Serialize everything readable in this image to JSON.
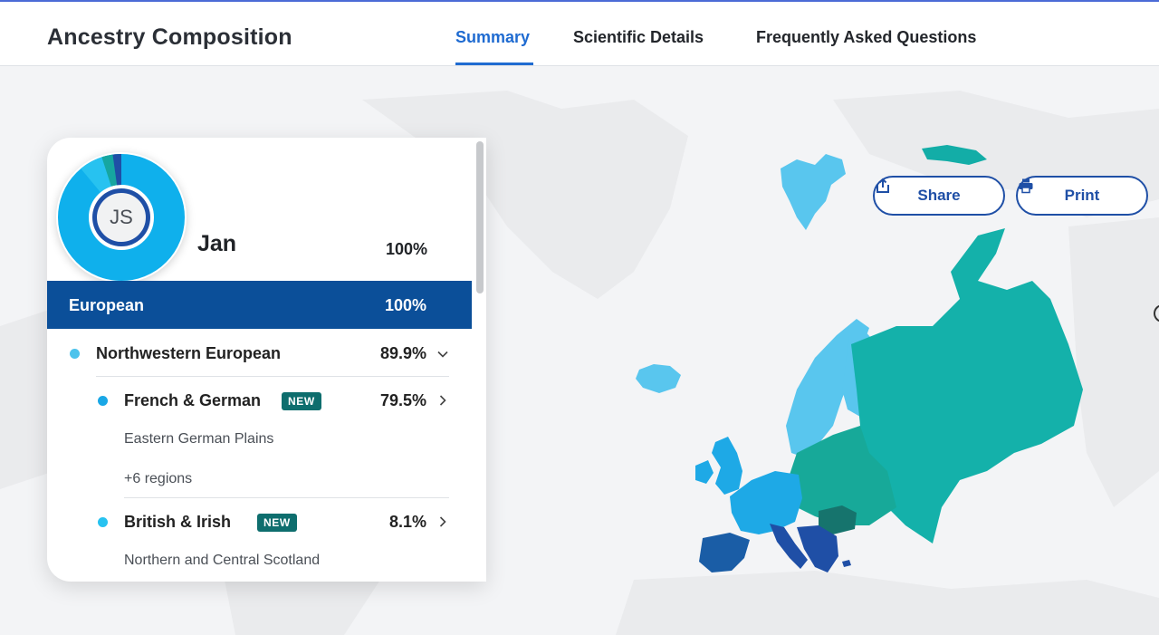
{
  "header": {
    "title": "Ancestry Composition",
    "tabs": [
      {
        "label": "Summary",
        "active": true
      },
      {
        "label": "Scientific Details",
        "active": false
      },
      {
        "label": "Frequently Asked Questions",
        "active": false
      }
    ]
  },
  "actions": {
    "share_label": "Share",
    "print_label": "Print"
  },
  "profile": {
    "initials": "JS",
    "name": "Jan",
    "percent": "100%"
  },
  "composition": {
    "group_label": "European",
    "group_percent": "100%",
    "rows": [
      {
        "label": "Northwestern European",
        "percent": "89.9%",
        "color": "#4cc3ec"
      },
      {
        "label": "French & German",
        "badge": "NEW",
        "percent": "79.5%",
        "color": "#19a7e6",
        "sub_regions": [
          "Eastern German Plains"
        ],
        "more": "+6 regions"
      },
      {
        "label": "British & Irish",
        "badge": "NEW",
        "percent": "8.1%",
        "color": "#27c2f0",
        "sub_regions": [
          "Northern and Central Scotland"
        ]
      }
    ]
  },
  "icons": {
    "share": "share-icon",
    "print": "printer-icon",
    "expanded": "chevron-down-icon",
    "collapsed": "chevron-right-icon"
  },
  "colors": {
    "accent": "#1f6bd1",
    "european": "#0b4f99",
    "northwestern": "#4cc3ec",
    "french_german": "#19a7e6",
    "british_irish": "#27c2f0",
    "eastern_europe": "#16b0ab",
    "southern_europe": "#1f5ea8",
    "badge": "#0e6e6e"
  }
}
